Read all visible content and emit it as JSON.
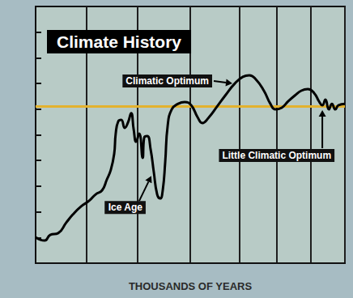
{
  "chart_data": {
    "type": "line",
    "title": "Climate History",
    "x_label": "THOUSANDS OF YEARS",
    "x": [
      0,
      2.9,
      4.7,
      7.3,
      9.9,
      12.0,
      14.7,
      17.3,
      19.4,
      21.5,
      23.0,
      24.3,
      25.4,
      25.9,
      26.7,
      27.7,
      28.8,
      29.8,
      30.9,
      31.7,
      32.5,
      33.5,
      34.6,
      35.1,
      36.1,
      37.2,
      38.2,
      39.3,
      40.3,
      41.1,
      41.9,
      42.7,
      44.0,
      46.1,
      48.2,
      50.3,
      52.4,
      53.9,
      56.0,
      58.6,
      61.3,
      64.4,
      67.0,
      69.1,
      71.2,
      73.8,
      75.9,
      77.5,
      79.6,
      81.7,
      83.8,
      85.9,
      88.0,
      90.1,
      91.6,
      92.7,
      93.7,
      94.8,
      95.8,
      96.9,
      97.9,
      100
    ],
    "values": [
      10.1,
      8.8,
      11.0,
      11.7,
      15.8,
      18.9,
      22.1,
      24.3,
      26.8,
      28.4,
      32.5,
      36.3,
      42.6,
      50.5,
      55.2,
      55.8,
      52.7,
      54.6,
      58.4,
      52.1,
      47.3,
      50.5,
      41.0,
      48.9,
      49.5,
      44.2,
      35.6,
      26.8,
      25.2,
      28.4,
      39.4,
      53.6,
      59.9,
      62.1,
      62.8,
      61.5,
      56.8,
      54.6,
      56.8,
      60.9,
      65.3,
      70.0,
      72.6,
      73.2,
      71.6,
      67.2,
      62.1,
      59.9,
      60.6,
      63.1,
      65.3,
      67.2,
      67.8,
      66.2,
      63.1,
      61.5,
      63.7,
      59.9,
      62.1,
      59.9,
      61.5,
      62.1
    ],
    "color": "#000000",
    "xlim": [
      0,
      100
    ],
    "xticks": [
      0,
      16.5,
      33,
      50,
      66,
      78,
      89,
      100
    ],
    "ylim": [
      0,
      100
    ],
    "yticks": [
      0,
      10,
      20,
      30,
      40,
      50,
      60,
      70,
      80,
      90,
      100
    ],
    "grid": true,
    "tick_labels": false,
    "reference_line": {
      "value": 61,
      "color": "#e3b22e"
    },
    "annotations": [
      {
        "text": "Climatic Optimum",
        "x": 64.4,
        "y": 70.0
      },
      {
        "text": "Little Climatic Optimum",
        "x": 92.7,
        "y": 61.5
      },
      {
        "text": "Ice Age",
        "x": 38.2,
        "y": 35.6
      }
    ]
  }
}
